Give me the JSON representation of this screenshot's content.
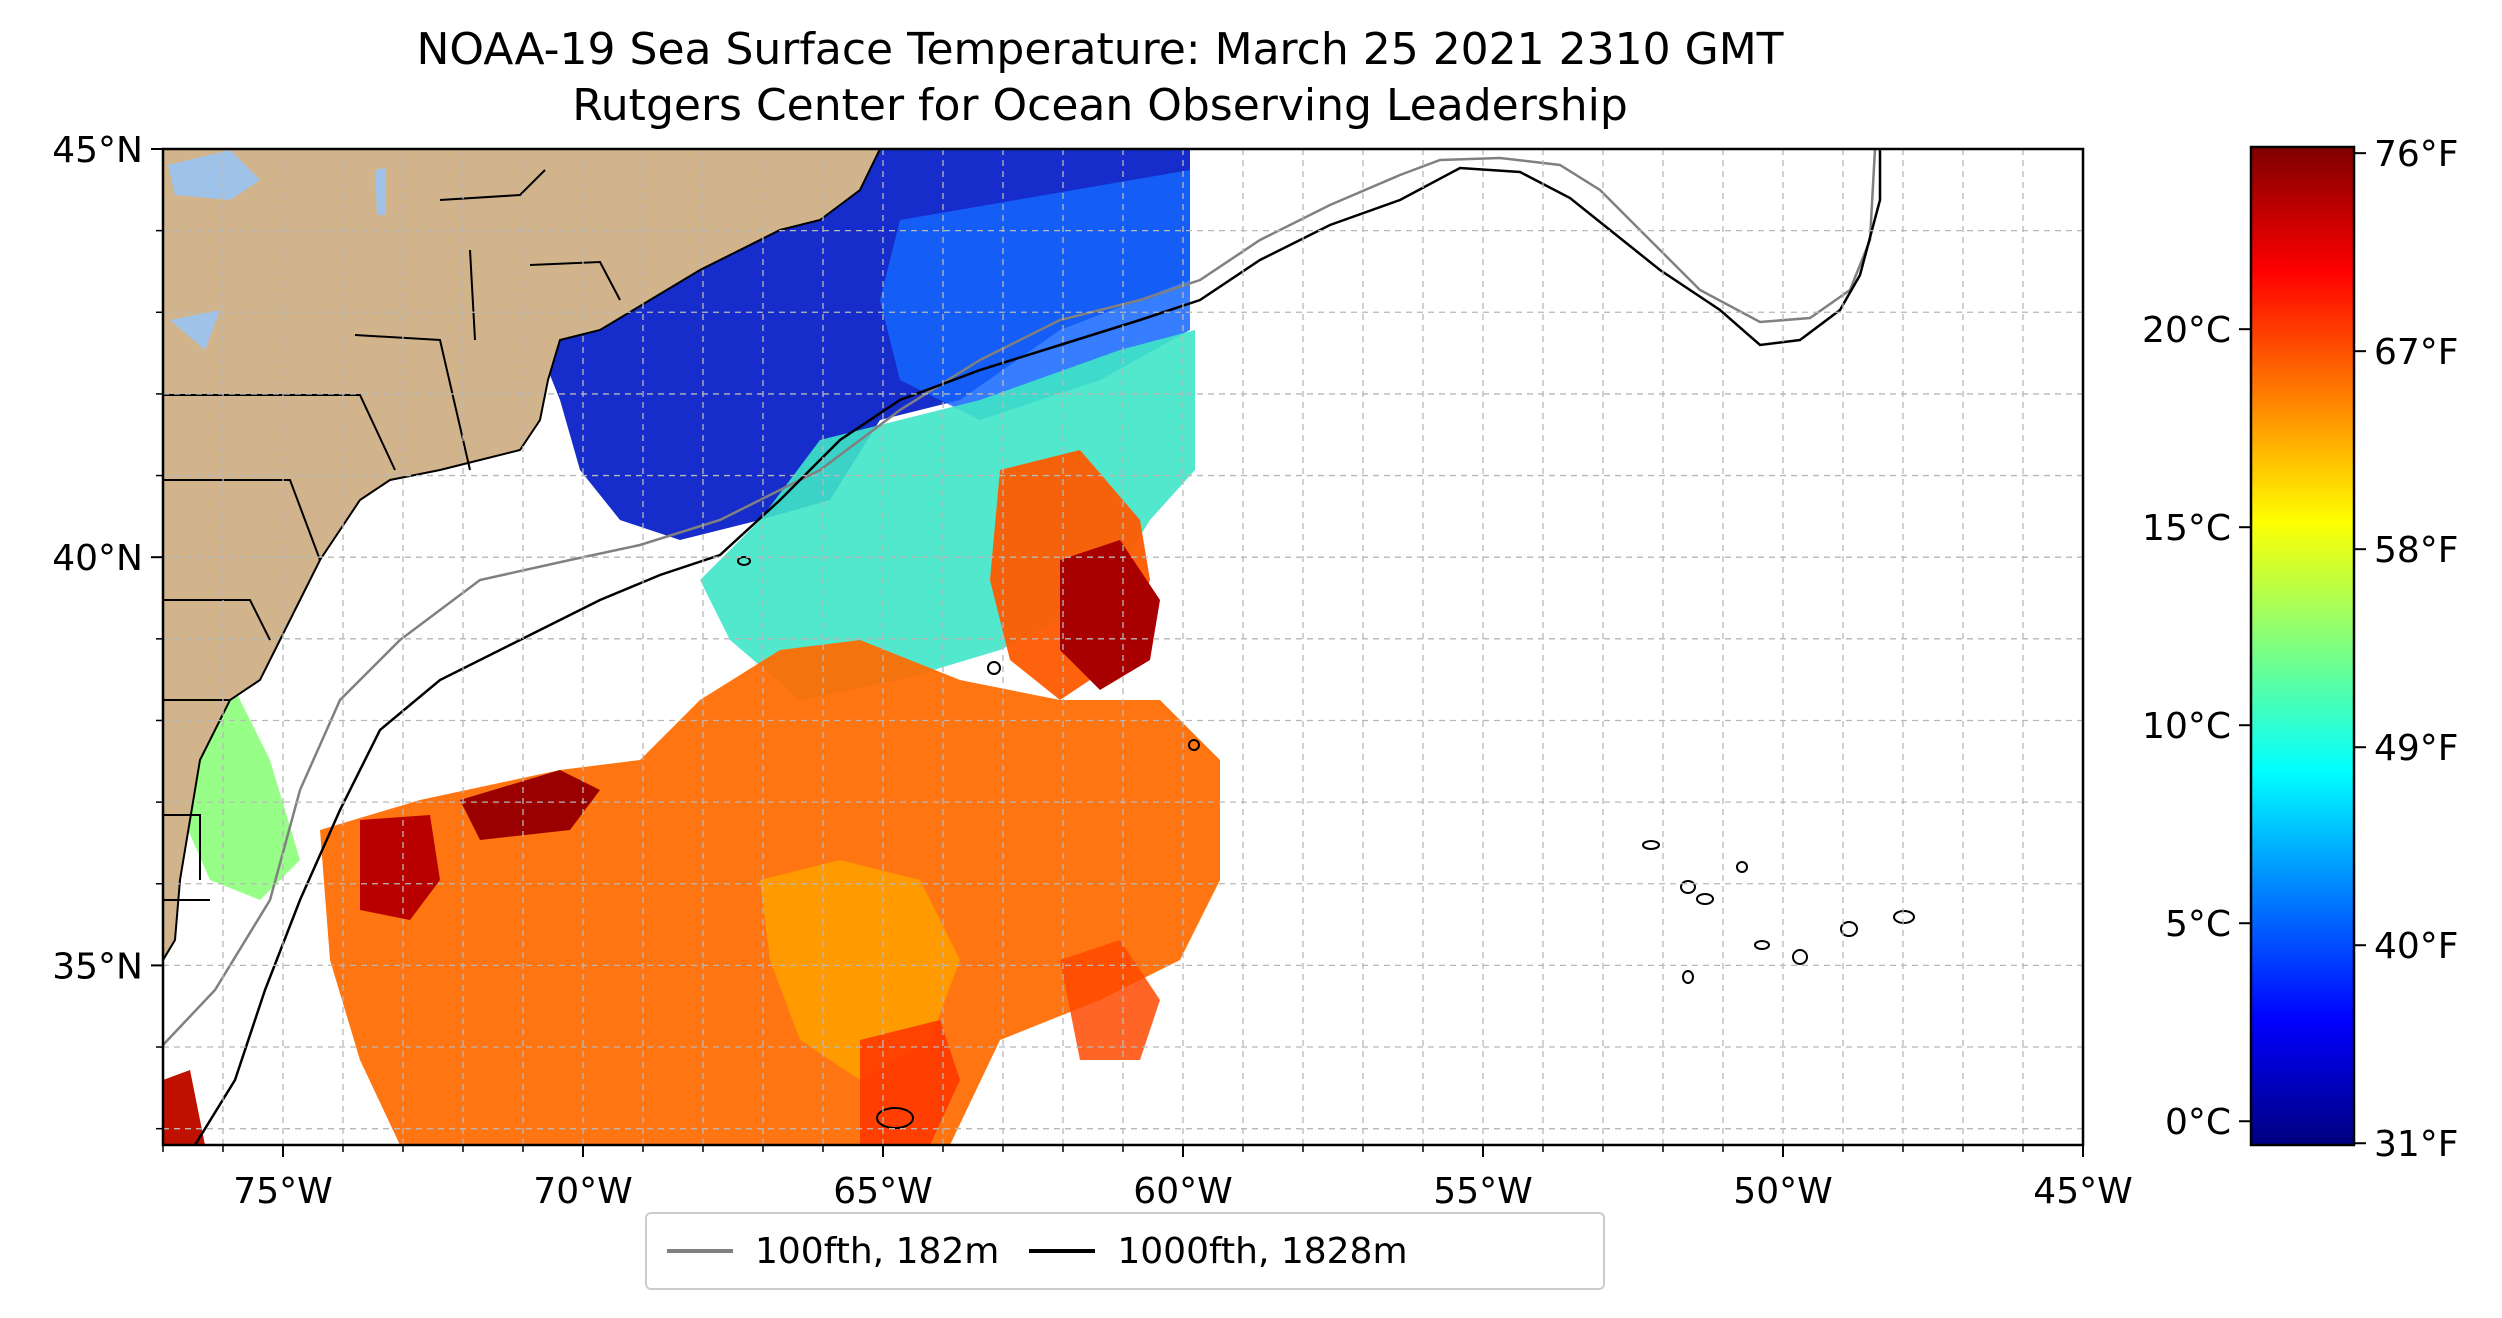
{
  "title": {
    "line1": "NOAA-19 Sea Surface Temperature: March 25 2021 2310 GMT",
    "line2": "Rutgers Center for Ocean Observing Leadership"
  },
  "map": {
    "extent": {
      "lon_min": -77,
      "lon_max": -45,
      "lat_min": 32.8,
      "lat_max": 45
    },
    "x_ticks": [
      {
        "lon": -75,
        "label": "75°W"
      },
      {
        "lon": -70,
        "label": "70°W"
      },
      {
        "lon": -65,
        "label": "65°W"
      },
      {
        "lon": -60,
        "label": "60°W"
      },
      {
        "lon": -55,
        "label": "55°W"
      },
      {
        "lon": -50,
        "label": "50°W"
      },
      {
        "lon": -45,
        "label": "45°W"
      }
    ],
    "y_ticks": [
      {
        "lat": 45,
        "label": "45°N"
      },
      {
        "lat": 40,
        "label": "40°N"
      },
      {
        "lat": 35,
        "label": "35°N"
      }
    ],
    "gridlines": true,
    "colors": {
      "land": "#d2b48c",
      "lakes": "#9fc3e8",
      "grid": "#b8b8b8",
      "contour_100fth": "#808080",
      "contour_1000fth": "#000000"
    }
  },
  "legend": {
    "placement": "bottom-center",
    "items": [
      {
        "label": "100fth, 182m",
        "color": "#808080"
      },
      {
        "label": "1000fth, 1828m",
        "color": "#000000"
      }
    ]
  },
  "colorbar": {
    "colormap": "jet",
    "range_c": [
      -0.6,
      24.6
    ],
    "ticks_c": [
      {
        "value": 0,
        "label": "0°C"
      },
      {
        "value": 5,
        "label": "5°C"
      },
      {
        "value": 10,
        "label": "10°C"
      },
      {
        "value": 15,
        "label": "15°C"
      },
      {
        "value": 20,
        "label": "20°C"
      }
    ],
    "ticks_f": [
      {
        "value": 31,
        "label": "31°F"
      },
      {
        "value": 40,
        "label": "40°F"
      },
      {
        "value": 49,
        "label": "49°F"
      },
      {
        "value": 58,
        "label": "58°F"
      },
      {
        "value": 67,
        "label": "67°F"
      },
      {
        "value": 76,
        "label": "76°F"
      }
    ],
    "stops": [
      "#00007f",
      "#0000ff",
      "#007fff",
      "#00ffff",
      "#7fff7f",
      "#ffff00",
      "#ff7f00",
      "#ff0000",
      "#7f0000"
    ]
  }
}
